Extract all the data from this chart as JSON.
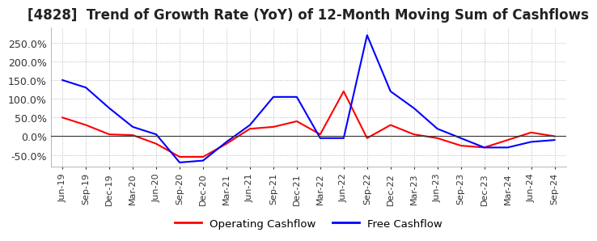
{
  "title": "[4828]  Trend of Growth Rate (YoY) of 12-Month Moving Sum of Cashflows",
  "title_fontsize": 12,
  "ylim": [
    -80,
    290
  ],
  "yticks": [
    -50.0,
    0.0,
    50.0,
    100.0,
    150.0,
    200.0,
    250.0
  ],
  "background_color": "#ffffff",
  "grid_color": "#aaaaaa",
  "legend_labels": [
    "Operating Cashflow",
    "Free Cashflow"
  ],
  "legend_colors": [
    "red",
    "blue"
  ],
  "x_labels": [
    "Jun-19",
    "Sep-19",
    "Dec-19",
    "Mar-20",
    "Jun-20",
    "Sep-20",
    "Dec-20",
    "Mar-21",
    "Jun-21",
    "Sep-21",
    "Dec-21",
    "Mar-22",
    "Jun-22",
    "Sep-22",
    "Dec-22",
    "Mar-23",
    "Jun-23",
    "Sep-23",
    "Dec-23",
    "Mar-24",
    "Jun-24",
    "Sep-24"
  ],
  "operating_cashflow": [
    50.0,
    30.0,
    5.0,
    3.0,
    -20.0,
    -55.0,
    -55.0,
    -20.0,
    20.0,
    25.0,
    40.0,
    5.0,
    120.0,
    -5.0,
    30.0,
    5.0,
    -5.0,
    -25.0,
    -30.0,
    -10.0,
    10.0,
    0.0
  ],
  "free_cashflow": [
    150.0,
    130.0,
    75.0,
    25.0,
    5.0,
    -70.0,
    -65.0,
    -15.0,
    30.0,
    105.0,
    105.0,
    -5.0,
    -5.0,
    270.0,
    120.0,
    75.0,
    20.0,
    -5.0,
    -30.0,
    -30.0,
    -15.0,
    -10.0
  ]
}
